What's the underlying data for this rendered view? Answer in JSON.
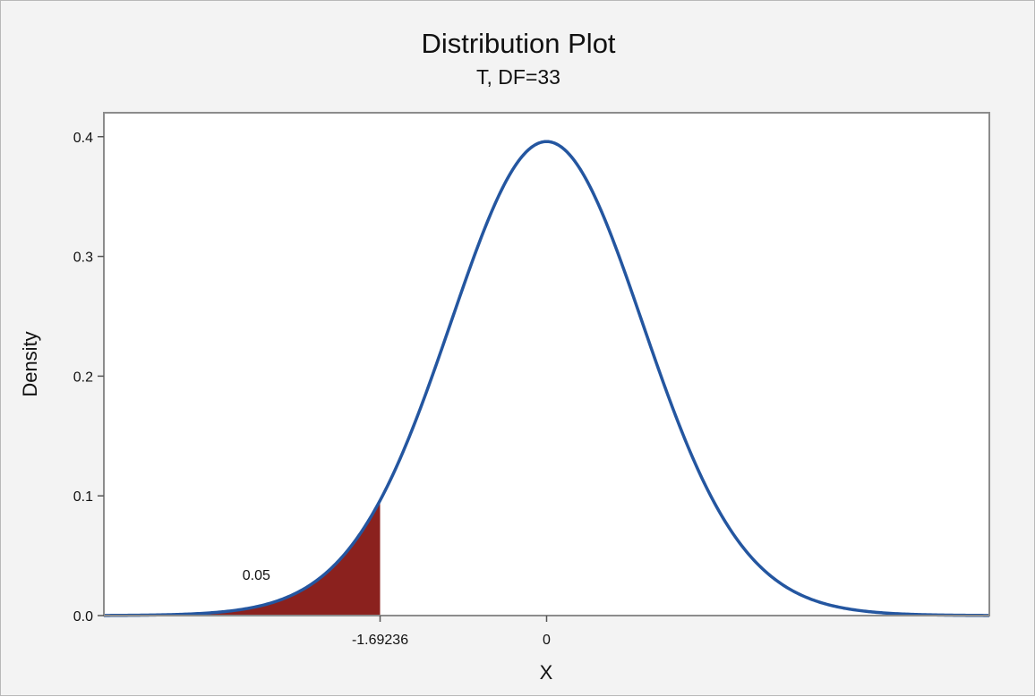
{
  "chart_data": {
    "type": "area",
    "title": "Distribution Plot",
    "subtitle": "T, DF=33",
    "xlabel": "X",
    "ylabel": "Density",
    "distribution": "T",
    "df": 33,
    "xlim": [
      -4.5,
      4.5
    ],
    "ylim": [
      0,
      0.42
    ],
    "y_ticks": [
      0.0,
      0.1,
      0.2,
      0.3,
      0.4
    ],
    "y_tick_labels": [
      "0.0",
      "0.1",
      "0.2",
      "0.3",
      "0.4"
    ],
    "x_ticks": [
      -1.69236,
      0
    ],
    "x_tick_labels": [
      "-1.69236",
      "0"
    ],
    "shaded_region": {
      "from": -4.5,
      "to": -1.69236,
      "area_label": "0.05",
      "area_label_x": -2.95,
      "area_label_y": 0.03
    },
    "grid": false,
    "legend": "none",
    "colors": {
      "curve": "#2456a0",
      "shade": "#8b211e",
      "background": "#f3f3f3",
      "plot_background": "#ffffff",
      "frame": "#8c8c8c"
    }
  }
}
